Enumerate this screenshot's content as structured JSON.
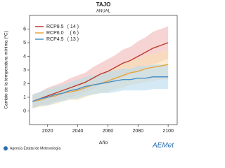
{
  "chart_data": {
    "type": "line",
    "title": "TAJO",
    "subtitle": "ANUAL",
    "x_label": "Año",
    "y_label": "Cambio de la temperatura mínima (ºC)",
    "x": [
      2010,
      2015,
      2020,
      2025,
      2030,
      2035,
      2040,
      2045,
      2050,
      2055,
      2060,
      2065,
      2070,
      2075,
      2080,
      2085,
      2090,
      2095,
      2100
    ],
    "series": [
      {
        "name": "RCP8.5",
        "count_label": "( 14 )",
        "color": "#c0392b",
        "band_color": "#f2b8b8",
        "values": [
          0.7,
          0.9,
          1.1,
          1.3,
          1.5,
          1.7,
          1.9,
          2.1,
          2.4,
          2.7,
          2.9,
          3.2,
          3.5,
          3.7,
          4.0,
          4.3,
          4.6,
          4.8,
          5.0
        ],
        "lower": [
          0.2,
          0.4,
          0.5,
          0.7,
          0.9,
          1.0,
          1.2,
          1.4,
          1.6,
          1.9,
          2.0,
          2.3,
          2.5,
          2.7,
          2.9,
          3.2,
          3.4,
          3.6,
          3.8
        ],
        "upper": [
          1.2,
          1.4,
          1.7,
          1.9,
          2.1,
          2.4,
          2.6,
          2.8,
          3.2,
          3.5,
          3.8,
          4.1,
          4.5,
          4.7,
          5.1,
          5.4,
          5.8,
          6.0,
          6.2
        ]
      },
      {
        "name": "RCP6.0",
        "count_label": "( 6 )",
        "color": "#e8a33c",
        "band_color": "#f9dfb0",
        "values": [
          0.7,
          0.8,
          1.0,
          1.1,
          1.3,
          1.4,
          1.5,
          1.7,
          1.9,
          2.0,
          2.2,
          2.4,
          2.6,
          2.8,
          2.9,
          3.1,
          3.2,
          3.3,
          3.4
        ],
        "lower": [
          0.2,
          0.3,
          0.4,
          0.5,
          0.7,
          0.8,
          0.8,
          1.0,
          1.2,
          1.3,
          1.4,
          1.6,
          1.7,
          1.9,
          2.0,
          2.1,
          2.2,
          2.3,
          2.3
        ],
        "upper": [
          1.2,
          1.3,
          1.6,
          1.7,
          1.9,
          2.0,
          2.2,
          2.4,
          2.6,
          2.7,
          3.0,
          3.2,
          3.5,
          3.7,
          3.8,
          4.1,
          4.2,
          4.3,
          4.5
        ]
      },
      {
        "name": "RCP4.5",
        "count_label": "( 13 )",
        "color": "#4a90c8",
        "band_color": "#b9dbef",
        "values": [
          0.7,
          0.9,
          1.0,
          1.2,
          1.3,
          1.5,
          1.6,
          1.8,
          1.9,
          2.0,
          2.1,
          2.2,
          2.3,
          2.3,
          2.4,
          2.4,
          2.5,
          2.5,
          2.5
        ],
        "lower": [
          0.2,
          0.4,
          0.4,
          0.6,
          0.7,
          0.9,
          0.9,
          1.1,
          1.2,
          1.3,
          1.3,
          1.4,
          1.5,
          1.5,
          1.5,
          1.5,
          1.6,
          1.6,
          1.6
        ],
        "upper": [
          1.2,
          1.4,
          1.6,
          1.8,
          1.9,
          2.1,
          2.3,
          2.5,
          2.6,
          2.7,
          2.9,
          3.0,
          3.1,
          3.1,
          3.3,
          3.3,
          3.4,
          3.4,
          3.4
        ]
      }
    ],
    "xlim": [
      2008,
      2106
    ],
    "xticks": [
      2020,
      2040,
      2060,
      2080,
      2100
    ],
    "ylim": [
      -1,
      7
    ],
    "yticks": [
      0,
      1,
      2,
      3,
      4,
      5,
      6
    ],
    "source": "Agencia Estatal de Meteorología",
    "logo": "AEMet"
  }
}
